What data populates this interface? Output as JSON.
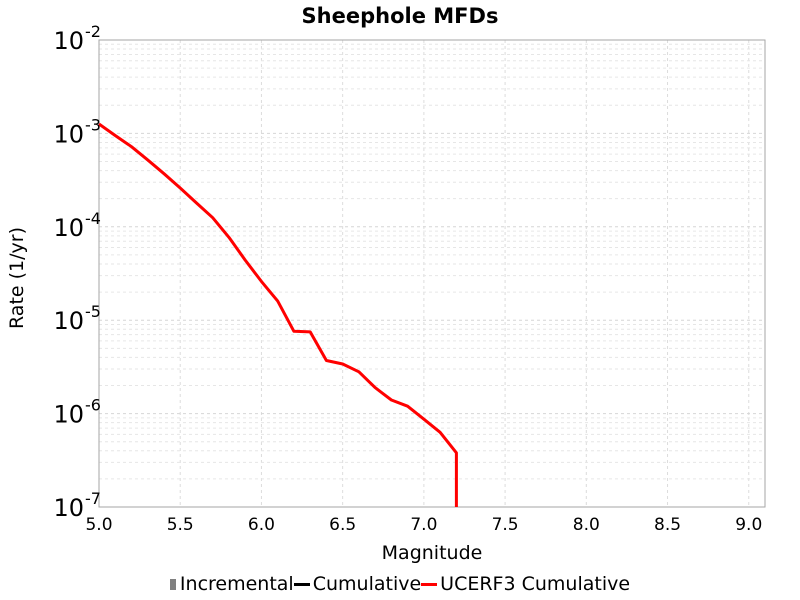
{
  "chart_data": {
    "type": "line",
    "title": "Sheephole MFDs",
    "xlabel": "Magnitude",
    "ylabel": "Rate (1/yr)",
    "xlim": [
      5.0,
      9.1
    ],
    "ylim": [
      1e-07,
      0.01
    ],
    "yscale": "log",
    "grid": true,
    "x_ticks": [
      "5.0",
      "5.5",
      "6.0",
      "6.5",
      "7.0",
      "7.5",
      "8.0",
      "8.5",
      "9.0"
    ],
    "y_ticks": [
      {
        "base": "10",
        "exp": "-2"
      },
      {
        "base": "10",
        "exp": "-3"
      },
      {
        "base": "10",
        "exp": "-4"
      },
      {
        "base": "10",
        "exp": "-5"
      },
      {
        "base": "10",
        "exp": "-6"
      },
      {
        "base": "10",
        "exp": "-7"
      }
    ],
    "legend_placement": "bottom",
    "series": [
      {
        "name": "Incremental",
        "style": "bar",
        "color": "#808080",
        "x": [],
        "y": []
      },
      {
        "name": "Cumulative",
        "style": "line",
        "color": "#000000",
        "x": [],
        "y": []
      },
      {
        "name": "UCERF3 Cumulative",
        "style": "line",
        "color": "#ff0000",
        "x": [
          5.0,
          5.1,
          5.2,
          5.3,
          5.4,
          5.5,
          5.6,
          5.7,
          5.8,
          5.9,
          6.0,
          6.1,
          6.2,
          6.3,
          6.4,
          6.5,
          6.6,
          6.7,
          6.8,
          6.9,
          7.0,
          7.1,
          7.2,
          7.2
        ],
        "y": [
          0.00126,
          0.00095,
          0.00072,
          0.00052,
          0.00037,
          0.00026,
          0.00018,
          0.000125,
          7.7e-05,
          4.4e-05,
          2.6e-05,
          1.6e-05,
          7.6e-06,
          7.5e-06,
          3.7e-06,
          3.4e-06,
          2.8e-06,
          1.9e-06,
          1.4e-06,
          1.2e-06,
          8.7e-07,
          6.3e-07,
          3.8e-07,
          1e-07
        ]
      }
    ]
  }
}
